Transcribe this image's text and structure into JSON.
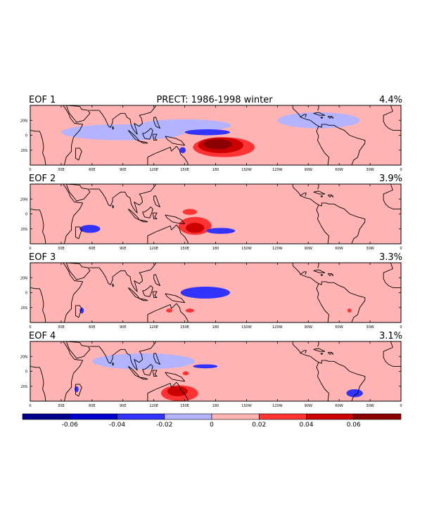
{
  "chart_data": {
    "type": "heatmap",
    "title": "PRECT: 1986-1998 winter",
    "panels": [
      {
        "label": "EOF 1",
        "variance": "4.4%",
        "blobs": [
          {
            "lon": 182,
            "lat": -9,
            "rlon": 14,
            "rlat": 5,
            "v": 0.065
          },
          {
            "lon": 185,
            "lat": -10,
            "rlon": 22,
            "rlat": 8,
            "v": 0.045
          },
          {
            "lon": 188,
            "lat": -12,
            "rlon": 30,
            "rlat": 10,
            "v": 0.025
          },
          {
            "lon": 172,
            "lat": 3,
            "rlon": 22,
            "rlat": 3,
            "v": -0.025
          },
          {
            "lon": 148,
            "lat": -15,
            "rlon": 3,
            "rlat": 3,
            "v": -0.025
          },
          {
            "lon": 150,
            "lat": 10,
            "rlon": 45,
            "rlat": 6,
            "v": -0.012
          },
          {
            "lon": 280,
            "lat": 15,
            "rlon": 40,
            "rlat": 8,
            "v": -0.012
          },
          {
            "lon": 90,
            "lat": 3,
            "rlon": 60,
            "rlat": 8,
            "v": -0.012
          }
        ]
      },
      {
        "label": "EOF 2",
        "variance": "3.9%",
        "blobs": [
          {
            "lon": 160,
            "lat": -14,
            "rlon": 9,
            "rlat": 5,
            "v": 0.045
          },
          {
            "lon": 155,
            "lat": 2,
            "rlon": 7,
            "rlat": 3,
            "v": 0.03
          },
          {
            "lon": 160,
            "lat": -12,
            "rlon": 16,
            "rlat": 9,
            "v": 0.025
          },
          {
            "lon": 58,
            "lat": -15,
            "rlon": 10,
            "rlat": 4,
            "v": -0.025
          },
          {
            "lon": 185,
            "lat": -17,
            "rlon": 14,
            "rlat": 3,
            "v": -0.025
          },
          {
            "lon": 160,
            "lat": 15,
            "rlon": 60,
            "rlat": 8,
            "v": 0.012
          },
          {
            "lon": 230,
            "lat": 5,
            "rlon": 60,
            "rlat": 8,
            "v": 0.012
          }
        ]
      },
      {
        "label": "EOF 3",
        "variance": "3.3%",
        "blobs": [
          {
            "lon": 170,
            "lat": 0,
            "rlon": 24,
            "rlat": 6,
            "v": -0.025
          },
          {
            "lon": 155,
            "lat": -18,
            "rlon": 4,
            "rlat": 2,
            "v": 0.025
          },
          {
            "lon": 135,
            "lat": -18,
            "rlon": 3,
            "rlat": 2,
            "v": 0.025
          },
          {
            "lon": 310,
            "lat": -18,
            "rlon": 2,
            "rlat": 2,
            "v": 0.025
          },
          {
            "lon": 50,
            "lat": -18,
            "rlon": 2,
            "rlat": 3,
            "v": -0.025
          },
          {
            "lon": 175,
            "lat": 20,
            "rlon": 80,
            "rlat": 8,
            "v": 0.012
          },
          {
            "lon": 250,
            "lat": -10,
            "rlon": 60,
            "rlat": 6,
            "v": 0.012
          }
        ]
      },
      {
        "label": "EOF 4",
        "variance": "3.1%",
        "blobs": [
          {
            "lon": 143,
            "lat": -20,
            "rlon": 10,
            "rlat": 5,
            "v": 0.045
          },
          {
            "lon": 145,
            "lat": -22,
            "rlon": 18,
            "rlat": 8,
            "v": 0.025
          },
          {
            "lon": 151,
            "lat": -2,
            "rlon": 3,
            "rlat": 2,
            "v": 0.025
          },
          {
            "lon": 170,
            "lat": 5,
            "rlon": 12,
            "rlat": 2,
            "v": -0.025
          },
          {
            "lon": 315,
            "lat": -22,
            "rlon": 8,
            "rlat": 4,
            "v": -0.025
          },
          {
            "lon": 45,
            "lat": -18,
            "rlon": 2,
            "rlat": 3,
            "v": -0.025
          },
          {
            "lon": 110,
            "lat": 10,
            "rlon": 50,
            "rlat": 8,
            "v": -0.012
          },
          {
            "lon": 240,
            "lat": -5,
            "rlon": 50,
            "rlat": 8,
            "v": 0.012
          }
        ]
      }
    ],
    "x_ticks": [
      "0",
      "30E",
      "60E",
      "90E",
      "120E",
      "150E",
      "180",
      "150W",
      "120W",
      "90W",
      "60W",
      "30W",
      "0"
    ],
    "y_ticks": [
      "20N",
      "0",
      "20S"
    ],
    "lon_range": [
      0,
      360
    ],
    "lat_range": [
      -30,
      30
    ],
    "colorbar": {
      "colors": [
        "#00008b",
        "#0000cd",
        "#3333ff",
        "#b3b3ff",
        "#ffb3b3",
        "#ff3333",
        "#cd0000",
        "#8b0000"
      ],
      "levels": [
        -0.06,
        -0.04,
        -0.02,
        0,
        0.02,
        0.04,
        0.06
      ],
      "labels": [
        "-0.06",
        "-0.04",
        "-0.02",
        "0",
        "0.02",
        "0.04",
        "0.06"
      ]
    }
  }
}
